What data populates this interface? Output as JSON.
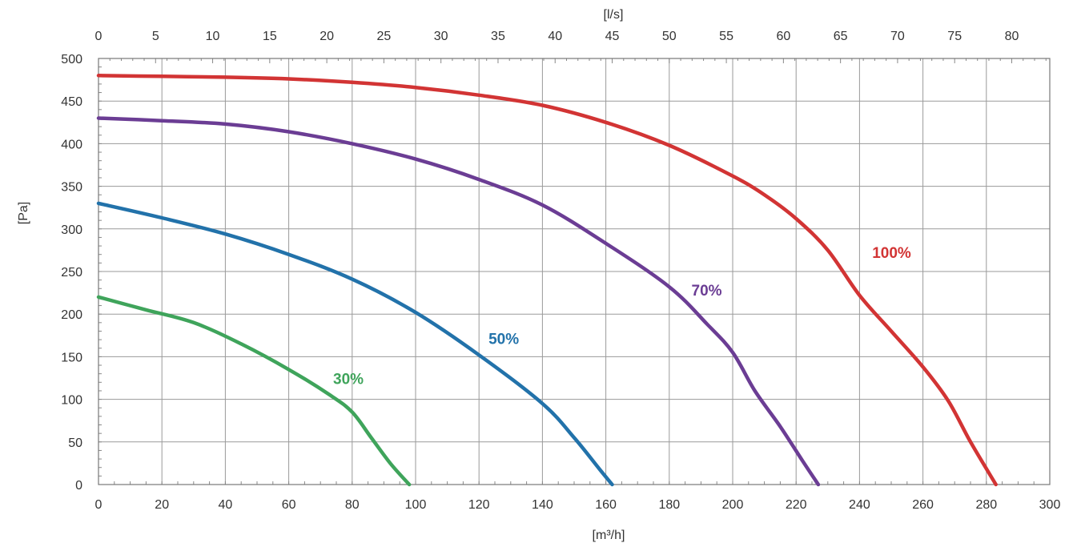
{
  "chart_data": {
    "type": "line",
    "xlabel": "[m³/h]",
    "ylabel": "[Pa]",
    "x2label": "[l/s]",
    "xlim": [
      0,
      300
    ],
    "ylim": [
      0,
      500
    ],
    "x2lim": [
      0,
      83.3333
    ],
    "grid": true,
    "x_ticks": [
      0,
      20,
      40,
      60,
      80,
      100,
      120,
      140,
      160,
      180,
      200,
      220,
      240,
      260,
      280,
      300
    ],
    "x_tick_labels": [
      "0",
      "20",
      "40",
      "60",
      "80",
      "100",
      "120",
      "140",
      "160",
      "180",
      "200",
      "220",
      "240",
      "260",
      "280",
      "300"
    ],
    "y_ticks": [
      0,
      50,
      100,
      150,
      200,
      250,
      300,
      350,
      400,
      450,
      500
    ],
    "y_tick_labels": [
      "0",
      "50",
      "100",
      "150",
      "200",
      "250",
      "300",
      "350",
      "400",
      "450",
      "500"
    ],
    "x2_ticks": [
      0,
      5,
      10,
      15,
      20,
      25,
      30,
      35,
      40,
      45,
      50,
      55,
      60,
      65,
      70,
      75,
      80
    ],
    "x2_tick_labels": [
      "0",
      "5",
      "10",
      "15",
      "20",
      "25",
      "30",
      "35",
      "40",
      "45",
      "50",
      "55",
      "60",
      "65",
      "70",
      "75",
      "80"
    ],
    "series": [
      {
        "name": "30%",
        "color": "#3fa45b",
        "label_at": [
          74,
          118
        ],
        "points": [
          [
            0,
            220
          ],
          [
            15,
            205
          ],
          [
            30,
            190
          ],
          [
            45,
            165
          ],
          [
            60,
            135
          ],
          [
            73,
            105
          ],
          [
            80,
            85
          ],
          [
            86,
            55
          ],
          [
            92,
            25
          ],
          [
            98,
            0
          ]
        ]
      },
      {
        "name": "50%",
        "color": "#2272aa",
        "label_at": [
          123,
          165
        ],
        "points": [
          [
            0,
            330
          ],
          [
            20,
            313
          ],
          [
            40,
            294
          ],
          [
            60,
            270
          ],
          [
            80,
            241
          ],
          [
            100,
            202
          ],
          [
            120,
            152
          ],
          [
            140,
            95
          ],
          [
            150,
            55
          ],
          [
            158,
            18
          ],
          [
            162,
            0
          ]
        ]
      },
      {
        "name": "70%",
        "color": "#6b3d94",
        "label_at": [
          187,
          222
        ],
        "points": [
          [
            0,
            430
          ],
          [
            20,
            427
          ],
          [
            40,
            423
          ],
          [
            60,
            414
          ],
          [
            80,
            400
          ],
          [
            100,
            382
          ],
          [
            120,
            358
          ],
          [
            140,
            328
          ],
          [
            160,
            283
          ],
          [
            180,
            232
          ],
          [
            192,
            188
          ],
          [
            200,
            155
          ],
          [
            207,
            110
          ],
          [
            215,
            68
          ],
          [
            222,
            28
          ],
          [
            227,
            0
          ]
        ]
      },
      {
        "name": "100%",
        "color": "#d23434",
        "label_at": [
          244,
          266
        ],
        "points": [
          [
            0,
            480
          ],
          [
            20,
            479
          ],
          [
            40,
            478
          ],
          [
            60,
            476
          ],
          [
            80,
            472
          ],
          [
            100,
            466
          ],
          [
            120,
            457
          ],
          [
            140,
            445
          ],
          [
            160,
            425
          ],
          [
            180,
            398
          ],
          [
            200,
            362
          ],
          [
            210,
            340
          ],
          [
            220,
            312
          ],
          [
            230,
            275
          ],
          [
            240,
            222
          ],
          [
            250,
            180
          ],
          [
            260,
            138
          ],
          [
            268,
            98
          ],
          [
            275,
            50
          ],
          [
            283,
            0
          ]
        ]
      }
    ]
  }
}
